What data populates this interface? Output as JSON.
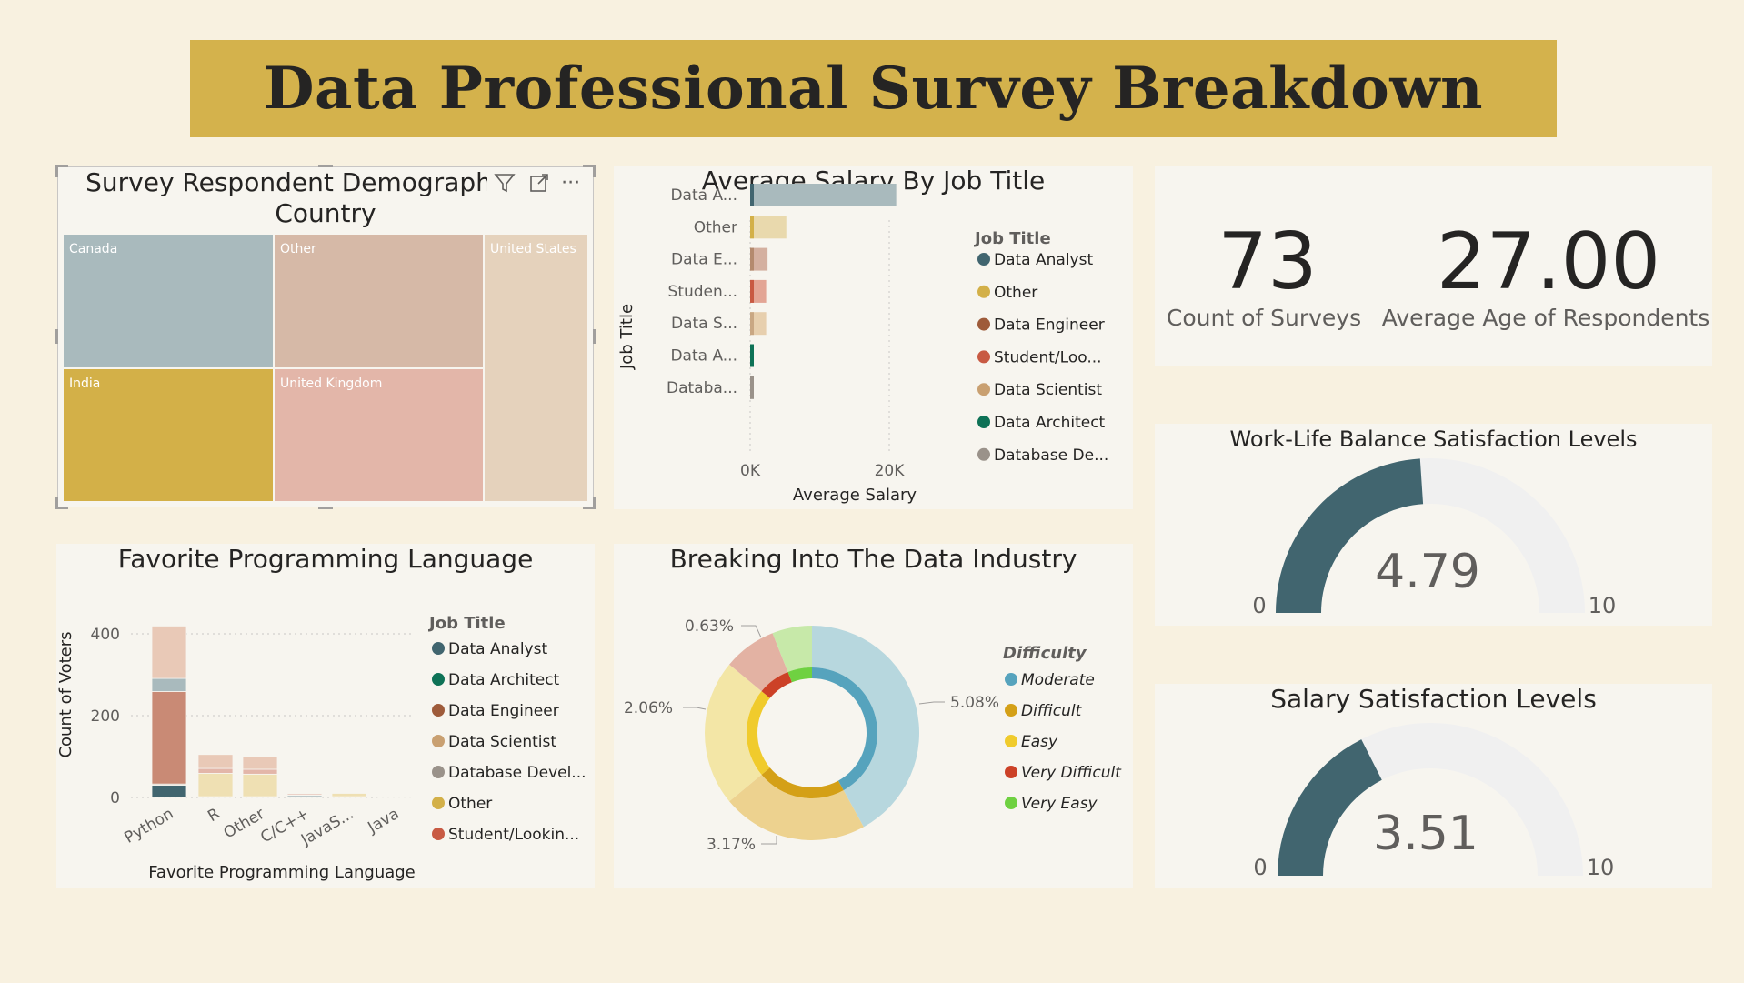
{
  "header": {
    "title": "Data Professional Survey Breakdown"
  },
  "colors": {
    "background": "#f8f1e0",
    "banner": "#d4b24c",
    "gauge_fill": "#41656f",
    "gauge_track": "#f0f0f0"
  },
  "demographics": {
    "title_line1": "Survey Respondent Demographics by",
    "title_line2": "Country",
    "header_icons": [
      "filter-icon",
      "focus-mode-icon",
      "more-options-icon"
    ],
    "more_label": "···",
    "tiles": [
      {
        "label": "Canada",
        "color": "#a9babd"
      },
      {
        "label": "Other",
        "color": "#d6b9a7"
      },
      {
        "label": "United States",
        "color": "#e5d2bc"
      },
      {
        "label": "India",
        "color": "#d3b048"
      },
      {
        "label": "United Kingdom",
        "color": "#e3b6a9"
      }
    ]
  },
  "salary": {
    "title": "Average Salary By Job Title",
    "chart_data": {
      "type": "bar",
      "orientation": "horizontal",
      "categories": [
        "Data A...",
        "Other",
        "Data E...",
        "Studen...",
        "Data S...",
        "Data A...",
        "Databa..."
      ],
      "values": [
        21000,
        5200,
        2500,
        2300,
        2300,
        100,
        80
      ],
      "colors": [
        "#a9babd",
        "#e9d9ad",
        "#d4b0a0",
        "#e3a595",
        "#e7cfae",
        "#7fbfa8",
        "#cdc3ba"
      ],
      "marker_colors": [
        "#41656f",
        "#d3b048",
        "#b48a6e",
        "#c85a43",
        "#c9a783",
        "#0e7256",
        "#9a928a"
      ],
      "xlabel": "Average Salary",
      "ylabel": "Job Title",
      "xticks": [
        "0K",
        "20K"
      ],
      "xlim": [
        0,
        20000
      ],
      "legend_title": "Job Title",
      "legend": [
        {
          "name": "Data Analyst",
          "color": "#41656f"
        },
        {
          "name": "Other",
          "color": "#d3b048"
        },
        {
          "name": "Data Engineer",
          "color": "#9e5b3a"
        },
        {
          "name": "Student/Loo...",
          "color": "#c85a43"
        },
        {
          "name": "Data Scientist",
          "color": "#c9a071"
        },
        {
          "name": "Data Architect",
          "color": "#0e7256"
        },
        {
          "name": "Database De...",
          "color": "#9a928a"
        }
      ]
    }
  },
  "kpis": {
    "count_value": "73",
    "count_label": "Count of Surveys",
    "age_value": "27.00",
    "age_label": "Average Age of Respondents"
  },
  "worklife": {
    "title": "Work-Life Balance Satisfaction Levels",
    "value": 4.79,
    "value_text": "4.79",
    "min": "0",
    "max": "10"
  },
  "salarysat": {
    "title": "Salary Satisfaction Levels",
    "value": 3.51,
    "value_text": "3.51",
    "min": "0",
    "max": "10"
  },
  "language": {
    "title": "Favorite Programming Language",
    "chart_data": {
      "type": "bar",
      "stacked": true,
      "categories": [
        "Python",
        "R",
        "Other",
        "C/C++",
        "JavaS...",
        "Java"
      ],
      "yticks": [
        "0",
        "200",
        "400"
      ],
      "ylim": [
        0,
        420
      ],
      "ylabel": "Count of Voters",
      "xlabel": "Favorite Programming Language",
      "legend_title": "Job Title",
      "series": [
        {
          "name": "Data Analyst",
          "color": "#41656f",
          "values": [
            30,
            2,
            2,
            0,
            0,
            0
          ]
        },
        {
          "name": "Data Architect",
          "color": "#0e7256",
          "values": [
            0,
            0,
            0,
            0,
            0,
            0
          ]
        },
        {
          "name": "Data Engineer",
          "color": "#9e5b3a",
          "values": [
            3,
            0,
            0,
            0,
            0,
            0
          ]
        },
        {
          "name": "Data Scientist",
          "color": "#c9a071",
          "values": [
            0,
            0,
            0,
            0,
            0,
            0
          ]
        },
        {
          "name": "Database Devel...",
          "color": "#9a928a",
          "values": [
            226,
            57,
            55,
            5,
            0,
            0
          ]
        },
        {
          "name": "Other",
          "color": "#d3b048",
          "values": [
            32,
            12,
            12,
            1,
            2,
            1
          ]
        },
        {
          "name": "Student/Lookin...",
          "color": "#c85a43",
          "values": [
            128,
            34,
            30,
            3,
            8,
            1
          ]
        }
      ],
      "segment_fills": [
        "#41656f",
        "#d8cec2",
        "#c98a75",
        "#a9babd",
        "#e9c9b7",
        "#e3c46a",
        "#efe0b3",
        "#d9a897",
        "#c85a43",
        "#e3b6a9"
      ]
    }
  },
  "difficulty": {
    "title": "Breaking Into The Data Industry",
    "chart_data": {
      "type": "pie",
      "donut": true,
      "legend_title": "Difficulty",
      "slices": [
        {
          "name": "Moderate",
          "value": 42,
          "outer": "#b7d7de",
          "inner": "#56a3bd",
          "legend": "#56a3bd"
        },
        {
          "name": "Difficult",
          "value": 22,
          "outer": "#edd28f",
          "inner": "#d4a017",
          "legend": "#d4a017"
        },
        {
          "name": "Easy",
          "value": 22,
          "outer": "#f3e6a6",
          "inner": "#f0cb2c",
          "legend": "#f0cb2c"
        },
        {
          "name": "Very Difficult",
          "value": 8,
          "outer": "#e3b2a3",
          "inner": "#cc4127",
          "legend": "#cc4127"
        },
        {
          "name": "Very Easy",
          "value": 6,
          "outer": "#c7e9a9",
          "inner": "#6fd141",
          "legend": "#6fd141"
        }
      ],
      "labels": [
        "5.08%",
        "3.17%",
        "2.06%",
        "0.63%"
      ]
    }
  }
}
